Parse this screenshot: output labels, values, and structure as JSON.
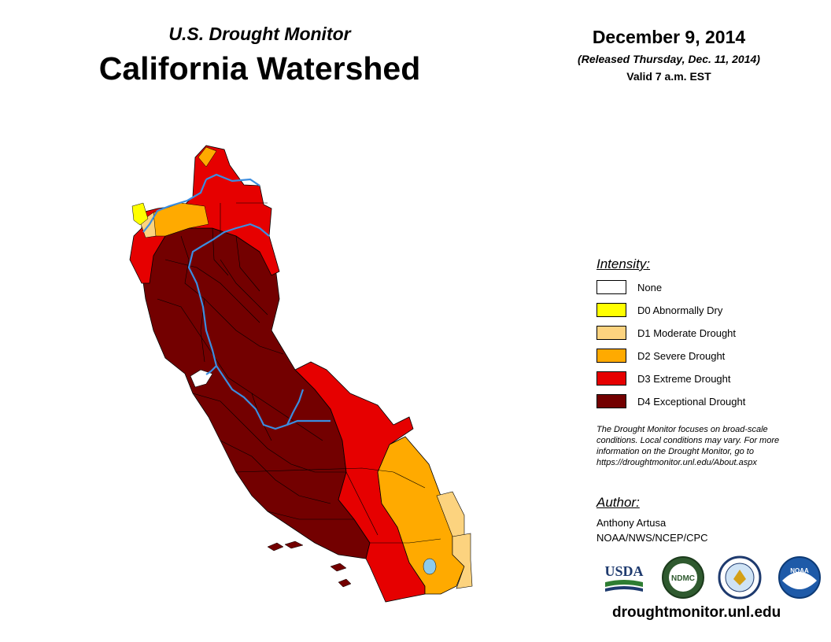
{
  "header": {
    "subtitle": "U.S. Drought Monitor",
    "title": "California Watershed",
    "date": "December 9, 2014",
    "released": "(Released Thursday, Dec. 11, 2014)",
    "valid": "Valid 7 a.m. EST"
  },
  "legend": {
    "title": "Intensity:",
    "items": [
      {
        "label": "None",
        "color": "#ffffff"
      },
      {
        "label": "D0 Abnormally Dry",
        "color": "#ffff00"
      },
      {
        "label": "D1 Moderate Drought",
        "color": "#fcd37f"
      },
      {
        "label": "D2 Severe Drought",
        "color": "#ffaa00"
      },
      {
        "label": "D3 Extreme Drought",
        "color": "#e60000"
      },
      {
        "label": "D4 Exceptional Drought",
        "color": "#730000"
      }
    ]
  },
  "note": {
    "line1": "The Drought Monitor focuses on broad-scale",
    "line2": "conditions. Local conditions may vary. For more",
    "line3": "information on the Drought Monitor, go to",
    "line4": "https://droughtmonitor.unl.edu/About.aspx"
  },
  "author": {
    "title": "Author:",
    "name": "Anthony Artusa",
    "org": "NOAA/NWS/NCEP/CPC"
  },
  "logos": {
    "usda": "USDA",
    "ndmc": "NDMC",
    "noaa": "NOAA"
  },
  "website": "droughtmonitor.unl.edu",
  "map": {
    "region": "California Watershed",
    "river_color": "#3b8de0",
    "boundary_color": "#000000"
  }
}
